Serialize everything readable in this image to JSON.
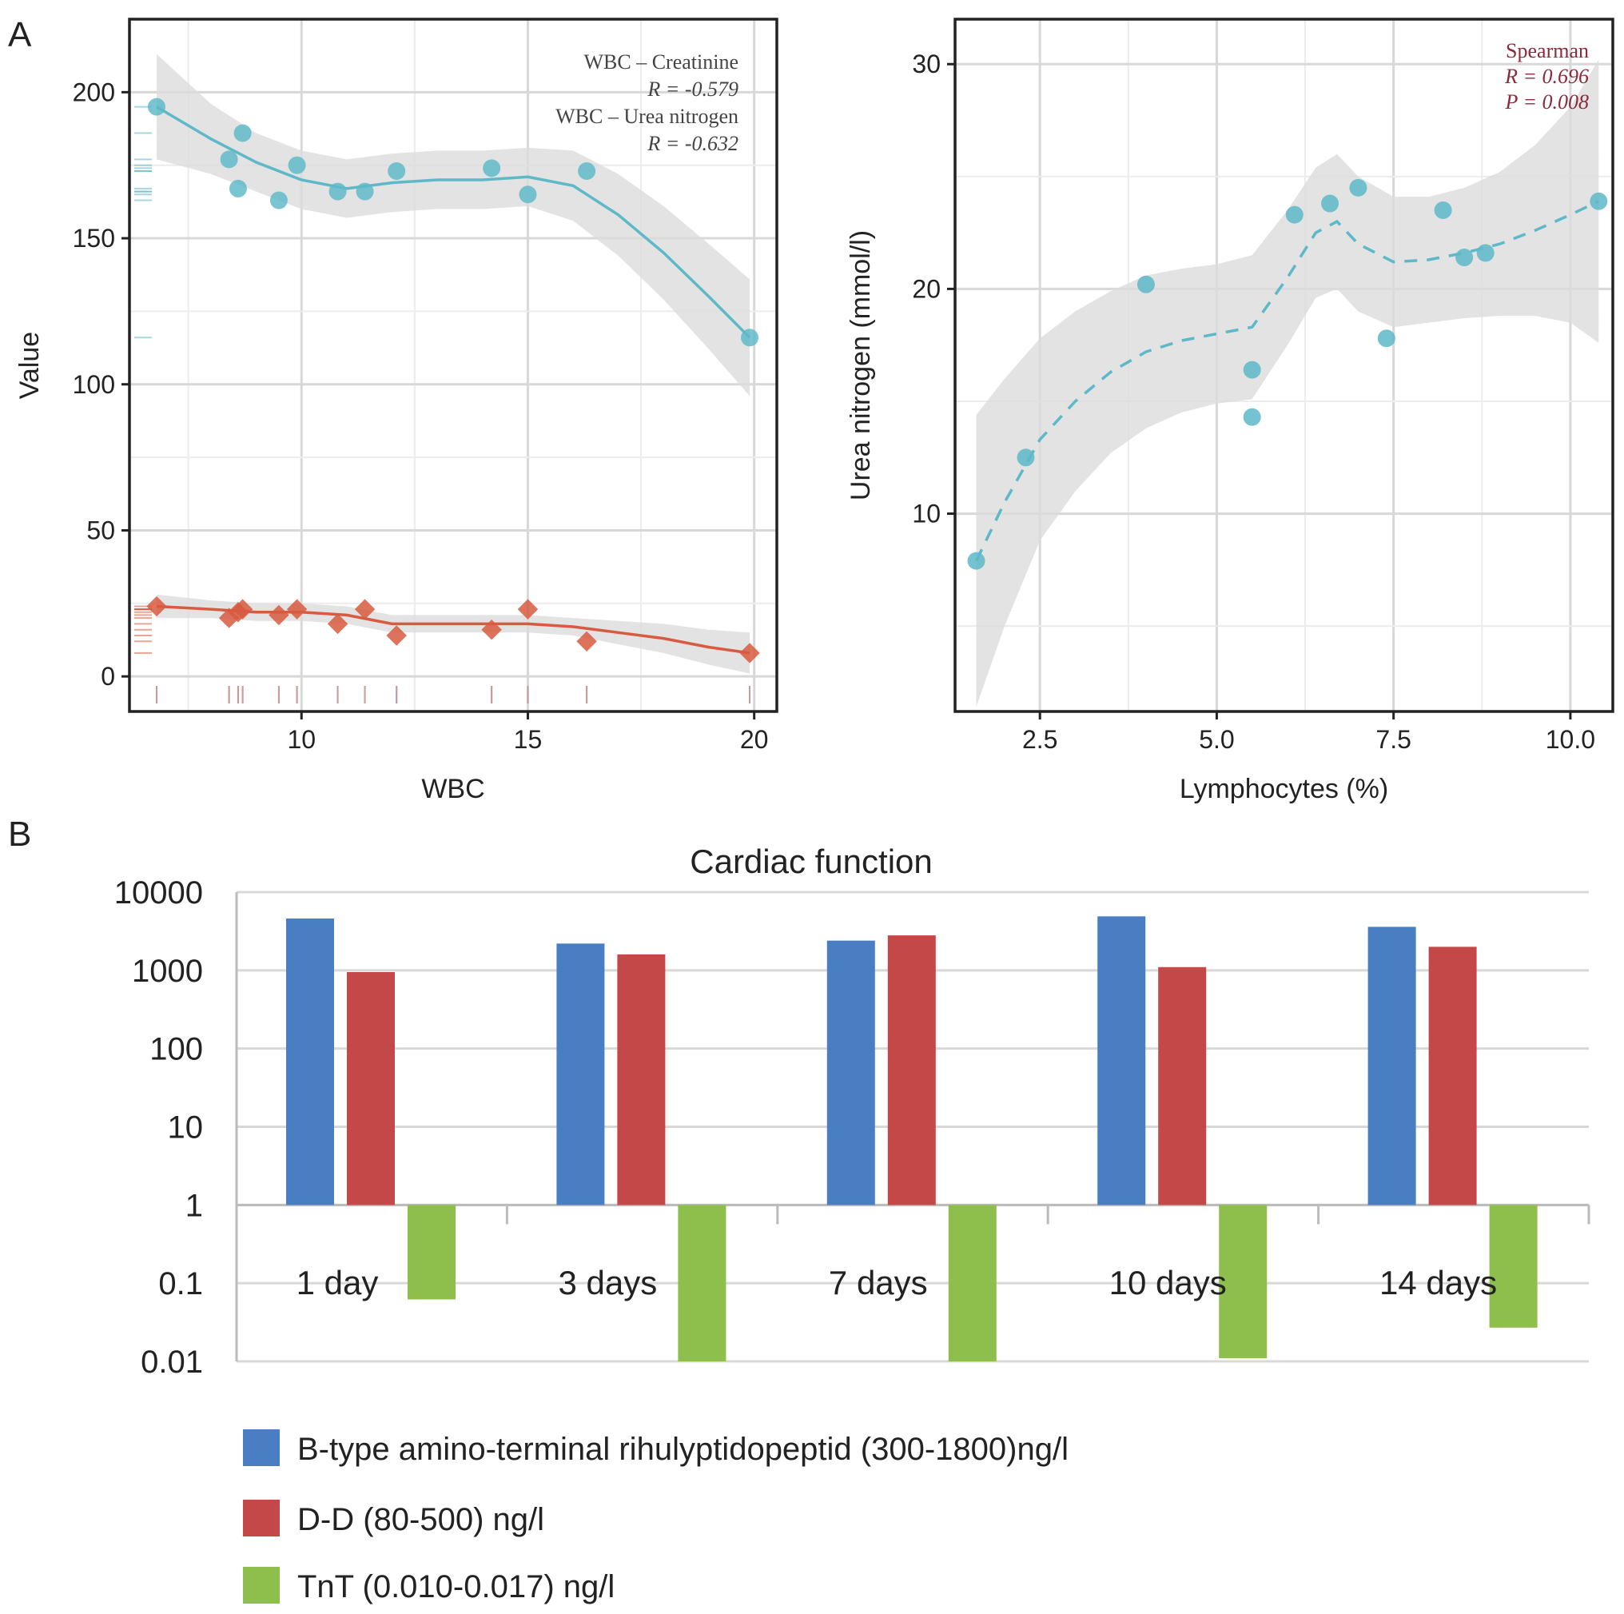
{
  "panel_labels": {
    "a": "A",
    "b": "B"
  },
  "colors": {
    "teal": "#5DB8C8",
    "red": "#D85A40",
    "blue": "#4A7EC2",
    "barred": "#C44848",
    "green": "#8EBF4C",
    "grid": "#d8d8d8",
    "band": "#dcdcdc",
    "maroon": "#8B2A3A"
  },
  "chart_data": [
    {
      "type": "scatter",
      "panel": "A-left",
      "xlabel": "WBC",
      "ylabel": "Value",
      "xlim": [
        6.2,
        20.5
      ],
      "ylim": [
        -12,
        225
      ],
      "xticks": [
        "10",
        "15",
        "20"
      ],
      "yticks": [
        "0",
        "50",
        "100",
        "150",
        "200"
      ],
      "annotations": [
        "WBC – Creatinine",
        "R = -0.579",
        "WBC – Urea  nitrogen",
        "R = -0.632"
      ],
      "series": [
        {
          "name": "Creatinine",
          "marker": "circle",
          "x": [
            6.8,
            8.4,
            8.6,
            8.7,
            9.5,
            9.9,
            10.8,
            11.4,
            12.1,
            14.2,
            15.0,
            16.3,
            19.9
          ],
          "y": [
            195,
            177,
            167,
            186,
            163,
            175,
            166,
            166,
            173,
            174,
            165,
            173,
            116
          ],
          "smooth_x": [
            6.8,
            8.0,
            9.0,
            10.0,
            11.0,
            12.0,
            13.0,
            14.0,
            15.0,
            16.0,
            17.0,
            18.0,
            19.0,
            19.9
          ],
          "smooth_y": [
            195,
            184,
            176,
            170,
            167,
            169,
            170,
            170,
            171,
            168,
            158,
            145,
            130,
            116
          ]
        },
        {
          "name": "Urea nitrogen",
          "marker": "diamond",
          "x": [
            6.8,
            8.4,
            8.6,
            8.7,
            9.5,
            9.9,
            10.8,
            11.4,
            12.1,
            14.2,
            15.0,
            16.3,
            19.9
          ],
          "y": [
            24,
            20,
            22,
            23,
            21,
            23,
            18,
            23,
            14,
            16,
            23,
            12,
            8
          ],
          "smooth_x": [
            6.8,
            8.0,
            9.0,
            10.0,
            11.0,
            12.0,
            13.0,
            14.0,
            15.0,
            16.0,
            17.0,
            18.0,
            19.0,
            19.9
          ],
          "smooth_y": [
            24,
            23,
            22,
            22,
            21,
            18,
            18,
            18,
            18,
            17,
            15,
            13,
            10,
            8
          ]
        }
      ]
    },
    {
      "type": "scatter",
      "panel": "A-right",
      "xlabel": "Lymphocytes (%)",
      "ylabel": "Urea nitrogen (mmol/l)",
      "xlim": [
        1.3,
        10.6
      ],
      "ylim": [
        1.2,
        32
      ],
      "xticks": [
        "2.5",
        "5.0",
        "7.5",
        "10.0"
      ],
      "yticks": [
        "10",
        "20",
        "30"
      ],
      "annotations": [
        "Spearman",
        "R = 0.696",
        "P = 0.008"
      ],
      "series": [
        {
          "name": "Urea nitrogen",
          "marker": "circle",
          "x": [
            1.6,
            2.3,
            4.0,
            5.5,
            5.5,
            6.1,
            6.6,
            7.0,
            7.4,
            8.2,
            8.5,
            8.8,
            10.4
          ],
          "y": [
            7.9,
            12.5,
            20.2,
            16.4,
            14.3,
            23.3,
            23.8,
            24.5,
            17.8,
            23.5,
            21.4,
            21.6,
            23.9
          ],
          "smooth_x": [
            1.6,
            2.0,
            2.5,
            3.0,
            3.5,
            4.0,
            4.5,
            5.0,
            5.5,
            6.0,
            6.4,
            6.7,
            7.0,
            7.5,
            8.0,
            8.5,
            9.0,
            9.5,
            10.0,
            10.4
          ],
          "smooth_y": [
            7.9,
            10.5,
            13.3,
            15.0,
            16.3,
            17.2,
            17.7,
            18.0,
            18.3,
            20.5,
            22.5,
            23.0,
            22.0,
            21.2,
            21.3,
            21.6,
            22.0,
            22.6,
            23.3,
            23.9
          ]
        }
      ]
    },
    {
      "type": "bar",
      "panel": "B",
      "title": "Cardiac function",
      "yscale": "log",
      "ylim": [
        0.01,
        10000
      ],
      "yticks": [
        "10000",
        "1000",
        "100",
        "10",
        "1",
        "0.1",
        "0.01"
      ],
      "categories": [
        "1 day",
        "3 days",
        "7 days",
        "10 days",
        "14 days"
      ],
      "series": [
        {
          "name": "B-type amino-terminal rihulyptidopeptid (300-1800)ng/l",
          "values": [
            4600,
            2200,
            2400,
            4900,
            3600
          ]
        },
        {
          "name": "D-D (80-500) ng/l",
          "values": [
            950,
            1600,
            2800,
            1100,
            2000
          ]
        },
        {
          "name": "TnT (0.010-0.017) ng/l",
          "values": [
            0.062,
            0.01,
            0.01,
            0.011,
            0.027
          ]
        }
      ]
    }
  ]
}
